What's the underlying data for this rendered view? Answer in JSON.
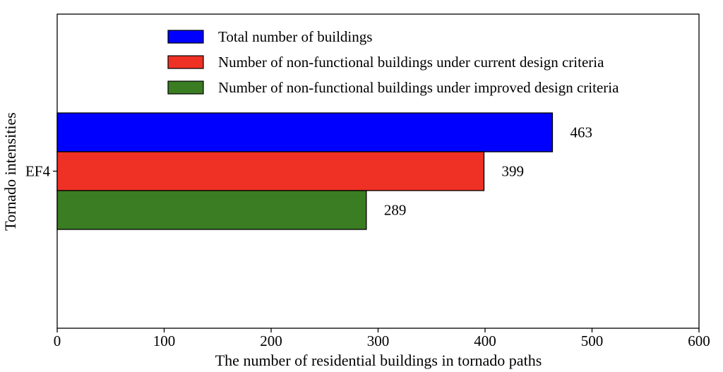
{
  "chart_data": {
    "type": "bar",
    "orientation": "horizontal",
    "categories": [
      "EF4"
    ],
    "series": [
      {
        "name": "Total number of buildings",
        "values": [
          463
        ],
        "color": "#0000ff"
      },
      {
        "name": "Number of non-functional buildings under current design criteria",
        "values": [
          399
        ],
        "color": "#ee3124"
      },
      {
        "name": "Number of non-functional buildings under improved design criteria",
        "values": [
          289
        ],
        "color": "#3a7d22"
      }
    ],
    "xlabel": "The number of residential buildings in tornado paths",
    "ylabel": "Tornado intensities",
    "xlim": [
      0,
      600
    ],
    "xticks": [
      "0",
      "100",
      "200",
      "300",
      "400",
      "500",
      "600"
    ],
    "data_labels": [
      "463",
      "399",
      "289"
    ],
    "legend_position": "top",
    "grid": false
  }
}
